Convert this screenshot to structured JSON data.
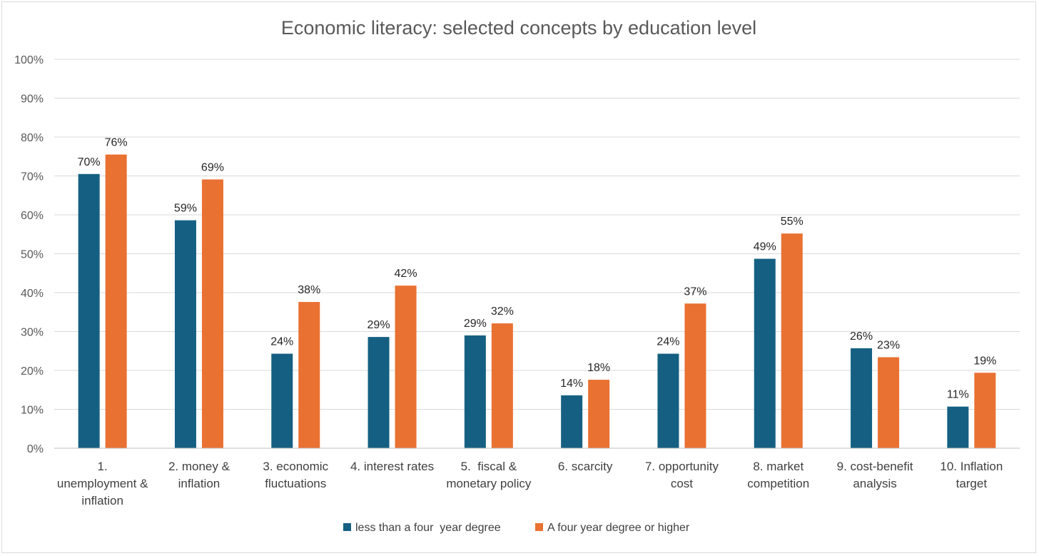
{
  "chart_data": {
    "type": "bar",
    "title": "Economic literacy: selected concepts by education level",
    "xlabel": "",
    "ylabel": "",
    "ylim": [
      0,
      1
    ],
    "y_tick_labels": [
      "0%",
      "10%",
      "20%",
      "30%",
      "40%",
      "50%",
      "60%",
      "70%",
      "80%",
      "90%",
      "100%"
    ],
    "grid": true,
    "legend_position": "bottom",
    "categories": [
      [
        "1.",
        "unemployment &",
        "inflation"
      ],
      [
        "2. money &",
        "inflation"
      ],
      [
        "3. economic",
        "fluctuations"
      ],
      [
        "4. interest rates"
      ],
      [
        "5.  fiscal &",
        "monetary policy"
      ],
      [
        "6. scarcity"
      ],
      [
        "7. opportunity",
        "cost"
      ],
      [
        "8. market",
        "competition"
      ],
      [
        "9. cost-benefit",
        "analysis"
      ],
      [
        "10. Inflation",
        "target"
      ]
    ],
    "series": [
      {
        "name": "less than a four  year degree",
        "color": "#156082",
        "values": [
          0.705,
          0.586,
          0.243,
          0.286,
          0.29,
          0.136,
          0.243,
          0.487,
          0.257,
          0.107
        ],
        "labels": [
          "70%",
          "59%",
          "24%",
          "29%",
          "29%",
          "14%",
          "24%",
          "49%",
          "26%",
          "11%"
        ]
      },
      {
        "name": "A four year degree or higher",
        "color": "#E97132",
        "values": [
          0.755,
          0.691,
          0.376,
          0.418,
          0.321,
          0.176,
          0.372,
          0.552,
          0.234,
          0.194
        ],
        "labels": [
          "76%",
          "69%",
          "38%",
          "42%",
          "32%",
          "18%",
          "37%",
          "55%",
          "23%",
          "19%"
        ]
      }
    ]
  }
}
